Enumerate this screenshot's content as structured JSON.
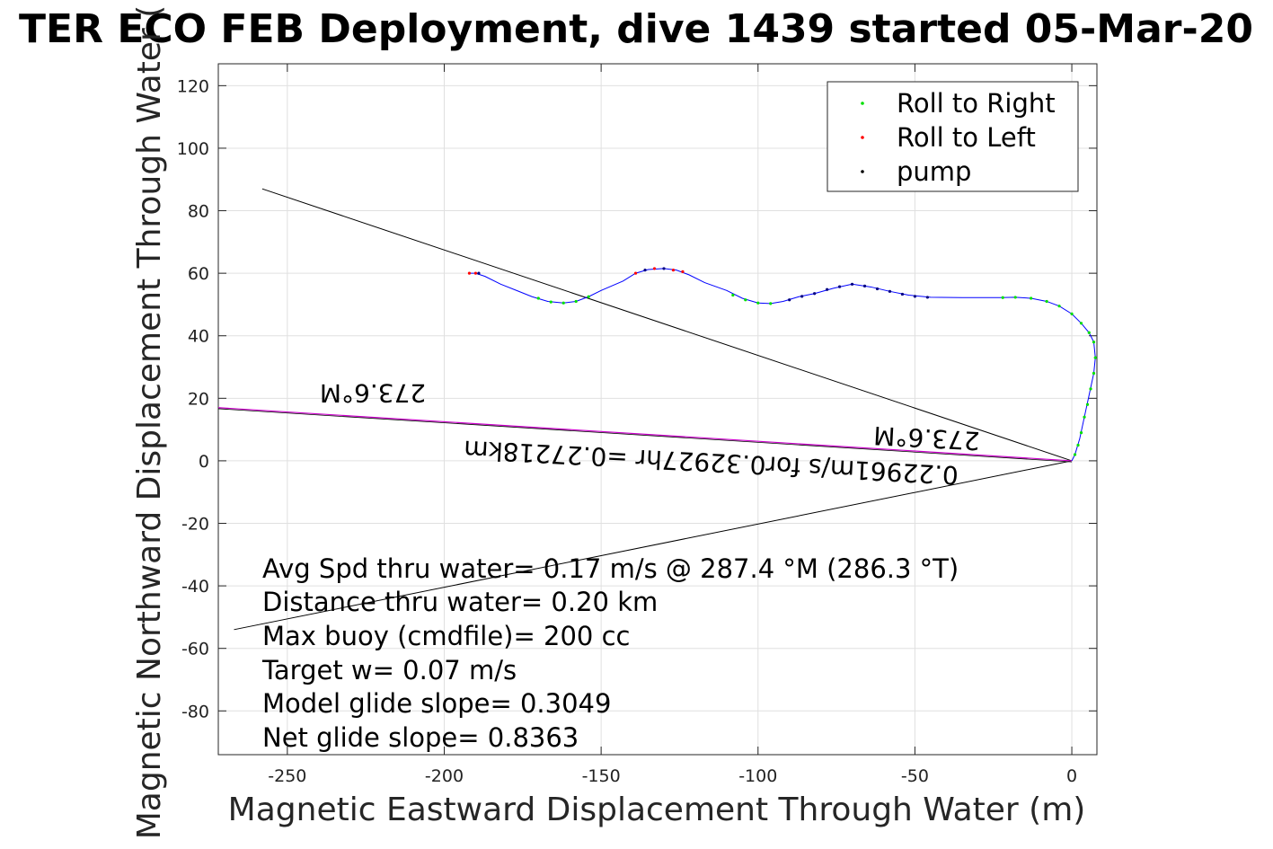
{
  "chart_data": {
    "type": "line",
    "title": "TER ECO FEB Deployment, dive 1439 started 05-Mar-20",
    "xlabel": "Magnetic Eastward Displacement Through Water (m)",
    "ylabel": "Magnetic Northward Displacement Through Water (",
    "xlim": [
      -272,
      8
    ],
    "ylim": [
      -94,
      127
    ],
    "xticks": [
      -250,
      -200,
      -150,
      -100,
      -50,
      0
    ],
    "yticks": [
      -80,
      -60,
      -40,
      -20,
      0,
      20,
      40,
      60,
      80,
      100,
      120
    ],
    "grid": true,
    "legend_position": "top-right",
    "legend": [
      {
        "label": "Roll to Right",
        "color": "#00e000"
      },
      {
        "label": "Roll to Left",
        "color": "#ff0000"
      },
      {
        "label": "pump",
        "color": "#000000"
      }
    ],
    "track": {
      "color": "#0000ff",
      "points": [
        [
          0,
          0
        ],
        [
          1,
          2
        ],
        [
          2.5,
          7
        ],
        [
          4,
          14
        ],
        [
          5.5,
          21
        ],
        [
          7,
          28
        ],
        [
          7.5,
          33
        ],
        [
          7,
          38
        ],
        [
          5.5,
          41
        ],
        [
          3,
          44
        ],
        [
          0,
          47
        ],
        [
          -4,
          49.5
        ],
        [
          -8,
          51
        ],
        [
          -13,
          52
        ],
        [
          -18,
          52.3
        ],
        [
          -23,
          52.2
        ],
        [
          -35,
          52.2
        ],
        [
          -45,
          52.3
        ],
        [
          -52,
          53
        ],
        [
          -58,
          54.2
        ],
        [
          -64,
          55.6
        ],
        [
          -70,
          56.5
        ],
        [
          -76,
          55.2
        ],
        [
          -82,
          53.5
        ],
        [
          -87,
          52.5
        ],
        [
          -92,
          51
        ],
        [
          -96,
          50.3
        ],
        [
          -100,
          50.5
        ],
        [
          -105,
          52
        ],
        [
          -110,
          54.5
        ],
        [
          -117,
          57
        ],
        [
          -122,
          59.5
        ],
        [
          -126,
          61
        ],
        [
          -130,
          61.5
        ],
        [
          -135,
          61.2
        ],
        [
          -139,
          60
        ],
        [
          -143,
          57.5
        ],
        [
          -150,
          54.5
        ],
        [
          -154,
          52.5
        ],
        [
          -158,
          51
        ],
        [
          -162,
          50.5
        ],
        [
          -167,
          51
        ],
        [
          -172,
          52.5
        ],
        [
          -177,
          54.5
        ],
        [
          -182,
          56.5
        ],
        [
          -187,
          59
        ],
        [
          -190,
          60
        ],
        [
          -192,
          60
        ]
      ]
    },
    "roll_right": [
      [
        1,
        2
      ],
      [
        2,
        5
      ],
      [
        3,
        9
      ],
      [
        4,
        14
      ],
      [
        5,
        18
      ],
      [
        6,
        23
      ],
      [
        7,
        28
      ],
      [
        7.5,
        33
      ],
      [
        7,
        38
      ],
      [
        5.5,
        41
      ],
      [
        3,
        44
      ],
      [
        0,
        47
      ],
      [
        -4,
        49.5
      ],
      [
        -8,
        51
      ],
      [
        -13,
        52
      ],
      [
        -18,
        52.3
      ],
      [
        -22,
        52.2
      ],
      [
        -96,
        50.3
      ],
      [
        -100,
        50.5
      ],
      [
        -104,
        51.5
      ],
      [
        -108,
        53
      ],
      [
        -154,
        52.5
      ],
      [
        -158,
        51
      ],
      [
        -162,
        50.5
      ],
      [
        -166,
        50.8
      ],
      [
        -170,
        52
      ]
    ],
    "roll_left": [
      [
        -190,
        60
      ],
      [
        -192,
        60
      ],
      [
        -139,
        60
      ],
      [
        -133,
        61.5
      ],
      [
        -127,
        61
      ],
      [
        -124,
        60.5
      ]
    ],
    "pump": [
      [
        -46,
        52.3
      ],
      [
        -50,
        52.6
      ],
      [
        -54,
        53.3
      ],
      [
        -58,
        54.2
      ],
      [
        -62,
        55
      ],
      [
        -66,
        55.9
      ],
      [
        -70,
        56.5
      ],
      [
        -74,
        55.7
      ],
      [
        -78,
        54.8
      ],
      [
        -82,
        53.5
      ],
      [
        -86,
        52.6
      ],
      [
        -90,
        51.5
      ],
      [
        -130,
        61.5
      ],
      [
        -136,
        61
      ],
      [
        -189,
        60
      ]
    ],
    "lines": {
      "upper": [
        [
          -258,
          87
        ],
        [
          0,
          0
        ]
      ],
      "lower": [
        [
          -267,
          -54
        ],
        [
          0,
          0
        ]
      ],
      "heading": [
        [
          -272,
          17
        ],
        [
          0,
          0
        ]
      ]
    },
    "annotations": [
      "273.6°M",
      "273.6°M",
      "0.22961m/s for0.32927hr =0.27218km"
    ],
    "stats": [
      "Avg Spd thru water=  0.17 m/s @ 287.4 °M (286.3 °T)",
      "Distance thru water=  0.20 km",
      "Max buoy (cmdfile)= 200 cc",
      "Target w= 0.07 m/s",
      "Model glide slope= 0.3049",
      "Net glide slope= 0.8363"
    ],
    "colors": {
      "track": "#0000ff",
      "heading_line": "#cc00cc",
      "roll_right": "#00e000",
      "roll_left": "#ff0000",
      "pump": "#000080",
      "grid": "#e0e0e0"
    }
  }
}
